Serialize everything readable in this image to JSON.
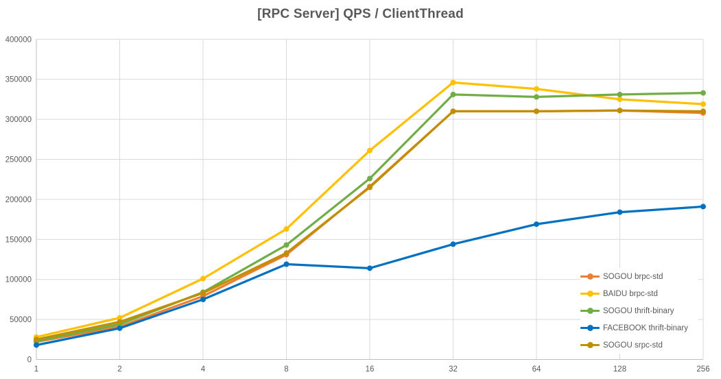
{
  "chart_data": {
    "type": "line",
    "title": "[RPC Server] QPS / ClientThread",
    "xlabel": "",
    "ylabel": "",
    "x_categories": [
      "1",
      "2",
      "4",
      "8",
      "16",
      "32",
      "64",
      "128",
      "256"
    ],
    "y_ticks": [
      0,
      50000,
      100000,
      150000,
      200000,
      250000,
      300000,
      350000,
      400000
    ],
    "ylim": [
      0,
      400000
    ],
    "grid": true,
    "legend_position": "inside-bottom-right",
    "axis_color": "#bfbfbf",
    "gridline_color": "#d9d9d9",
    "tick_label_color": "#595959",
    "series": [
      {
        "name": "SOGOU brpc-std",
        "color": "#ED7D31",
        "values": [
          22000,
          41000,
          79000,
          131000,
          216000,
          310000,
          310000,
          311000,
          308000
        ]
      },
      {
        "name": "BAIDU brpc-std",
        "color": "#FFC000",
        "values": [
          28000,
          52000,
          101000,
          163000,
          261000,
          346000,
          338000,
          325000,
          319000
        ]
      },
      {
        "name": "SOGOU thrift-binary",
        "color": "#70AD47",
        "values": [
          23000,
          44000,
          84000,
          143000,
          226000,
          331000,
          328000,
          331000,
          333000
        ]
      },
      {
        "name": "FACEBOOK thrift-binary",
        "color": "#0070C0",
        "values": [
          18000,
          39000,
          75000,
          119000,
          114000,
          144000,
          169000,
          184000,
          191000
        ]
      },
      {
        "name": "SOGOU srpc-std",
        "color": "#BF8F00",
        "values": [
          25000,
          47000,
          83000,
          133000,
          215000,
          310000,
          310000,
          311000,
          310000
        ]
      }
    ]
  }
}
